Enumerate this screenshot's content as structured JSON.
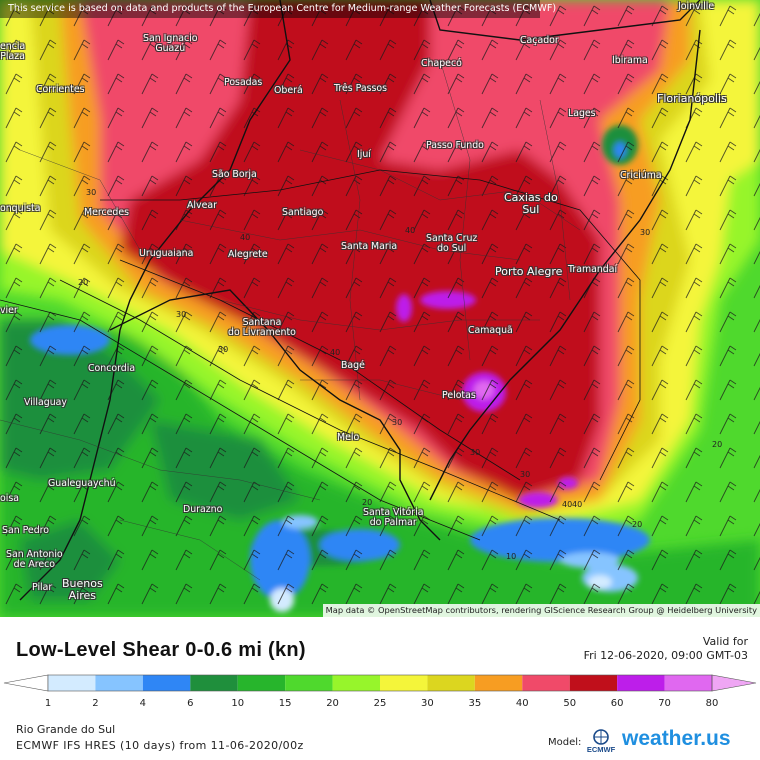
{
  "banner": "This service is based on data and products of the European Centre for Medium-range Weather Forecasts (ECMWF)",
  "attribution": "Map data © OpenStreetMap contributors, rendering GIScience Research Group @ Heidelberg University",
  "cities": [
    {
      "name": "Joinville"
    },
    {
      "name": "San Ignacio\nGuazú"
    },
    {
      "name": "Chapecó"
    },
    {
      "name": "Caçador"
    },
    {
      "name": "Ibirama"
    },
    {
      "name": "Corrientes"
    },
    {
      "name": "Posadas"
    },
    {
      "name": "Oberá"
    },
    {
      "name": "Três Passos"
    },
    {
      "name": "Florianópolis"
    },
    {
      "name": "Lages"
    },
    {
      "name": "Passo Fundo"
    },
    {
      "name": "Ijuí"
    },
    {
      "name": "Criciúma"
    },
    {
      "name": "São Borja"
    },
    {
      "name": "Caxias do\nSul"
    },
    {
      "name": "Alvear"
    },
    {
      "name": "Mercedes"
    },
    {
      "name": "Santiago"
    },
    {
      "name": "Santa Maria"
    },
    {
      "name": "Santa Cruz\ndo Sul"
    },
    {
      "name": "Uruguaiana"
    },
    {
      "name": "Alegrete"
    },
    {
      "name": "Porto Alegre"
    },
    {
      "name": "Tramandaí"
    },
    {
      "name": "Santana\ndo Livramento"
    },
    {
      "name": "Camaquã"
    },
    {
      "name": "Concordia"
    },
    {
      "name": "Bagé"
    },
    {
      "name": "Pelotas"
    },
    {
      "name": "Villaguay"
    },
    {
      "name": "Melo"
    },
    {
      "name": "Gualeguaychú"
    },
    {
      "name": "Santa Vitória\ndo Palmar"
    },
    {
      "name": "Durazno"
    },
    {
      "name": "San Pedro"
    },
    {
      "name": "San Antonio\nde Areco"
    },
    {
      "name": "Pilar"
    },
    {
      "name": "Buenos\nAires"
    },
    {
      "name": "encia\nPlaza"
    },
    {
      "name": "onquista"
    },
    {
      "name": "vier"
    },
    {
      "name": "oisa"
    }
  ],
  "contour_labels": [
    "30",
    "40",
    "40",
    "20",
    "30",
    "40",
    "30",
    "20",
    "30",
    "40",
    "30",
    "20",
    "10",
    "30",
    "40",
    "20",
    "30"
  ],
  "legend": {
    "title": "Low-Level Shear 0-0.6 mi (kn)",
    "valid_label": "Valid for",
    "valid_time": "Fri 12-06-2020, 09:00 GMT-03",
    "ticks": [
      "1",
      "2",
      "4",
      "6",
      "10",
      "15",
      "20",
      "25",
      "30",
      "35",
      "40",
      "50",
      "60",
      "70",
      "80"
    ],
    "colors": [
      "#d3ebff",
      "#86c4ff",
      "#2f86f5",
      "#1f8f3c",
      "#27b52c",
      "#4fd92d",
      "#97f52b",
      "#f4f53a",
      "#dcd61f",
      "#f79d22",
      "#f04a69",
      "#c00f1b",
      "#bd1eea",
      "#e068f0",
      "#efa6f4"
    ],
    "region": "Rio Grande do Sul",
    "model_info": "ECMWF IFS HRES (10 days) from 11-06-2020/00z",
    "model_label": "Model:",
    "model_logo_text": "ECMWF",
    "brand": "weather.us"
  }
}
